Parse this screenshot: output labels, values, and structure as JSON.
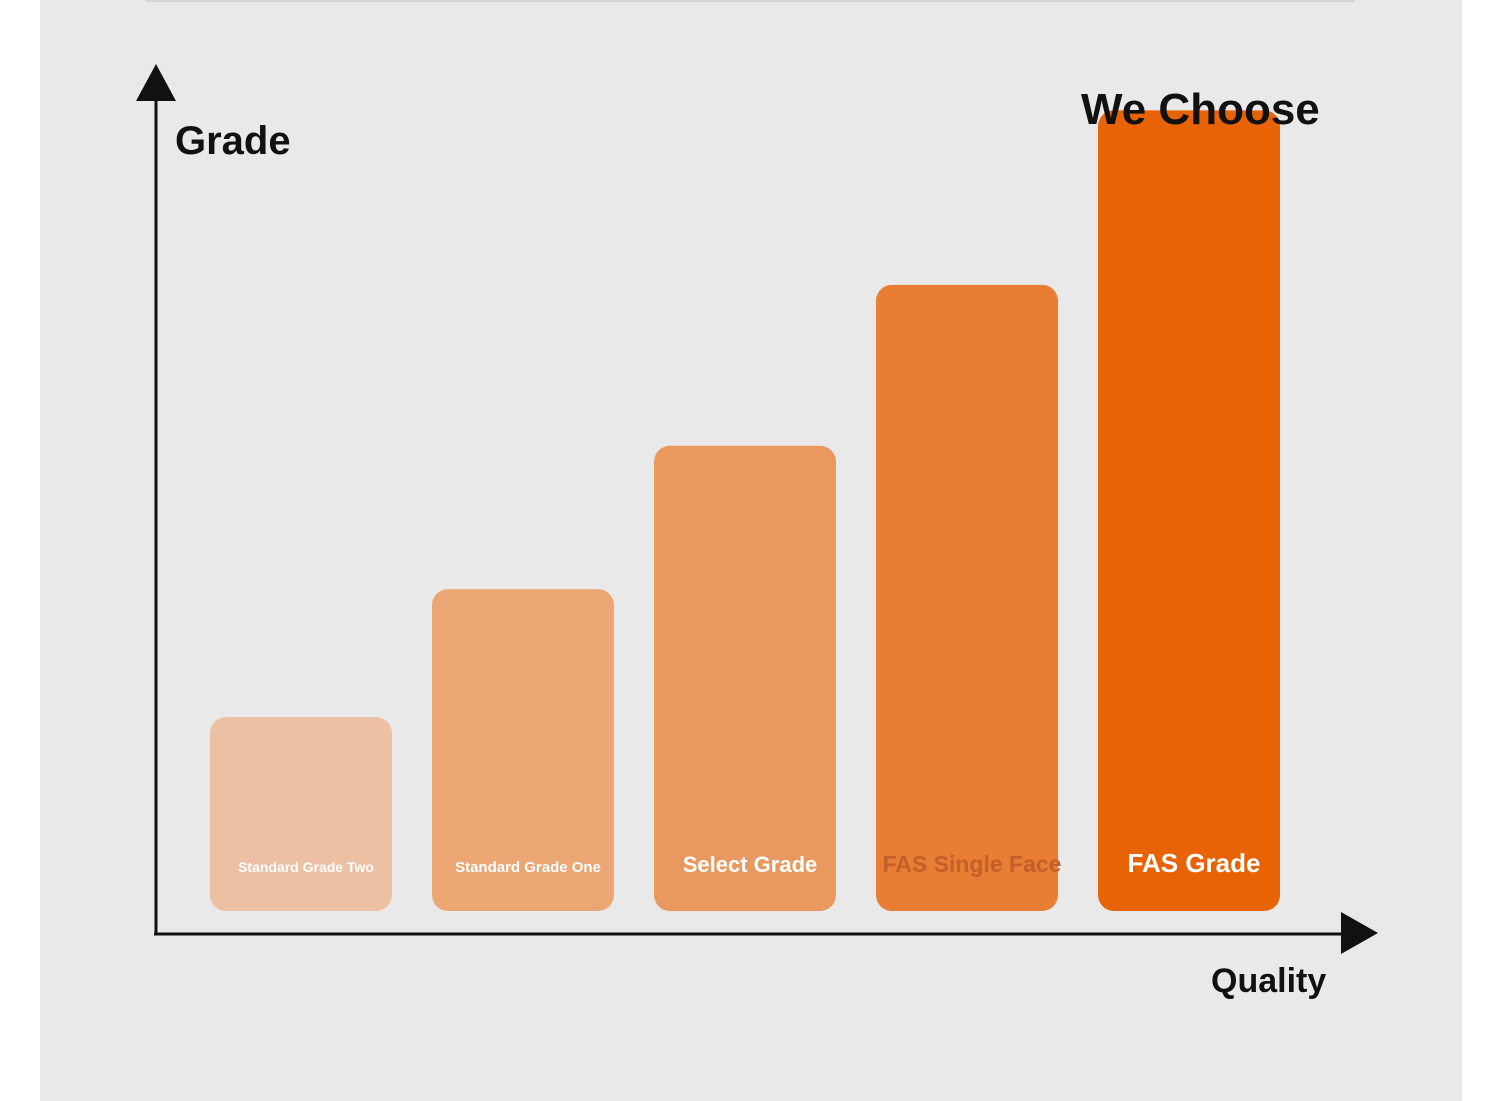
{
  "chart_data": {
    "type": "bar",
    "title": "",
    "ylabel": "Grade",
    "xlabel": "Quality",
    "annotation": "We Choose",
    "categories": [
      "Standard Grade Two",
      "Standard Grade One",
      "Select Grade",
      "FAS Single Face",
      "FAS Grade"
    ],
    "values": [
      1.0,
      1.66,
      2.4,
      3.23,
      4.13
    ],
    "ylim": [
      0,
      4.4
    ],
    "grid": false,
    "legend": "none",
    "colors": [
      "#ecc0a2",
      "#eca674",
      "#e99960",
      "#e97d33",
      "#e86305"
    ],
    "label_colors": [
      "#ffffff",
      "#ffffff",
      "#ffffff",
      "#c25f2a",
      "#ffffff"
    ],
    "axis_color": "#111111"
  }
}
